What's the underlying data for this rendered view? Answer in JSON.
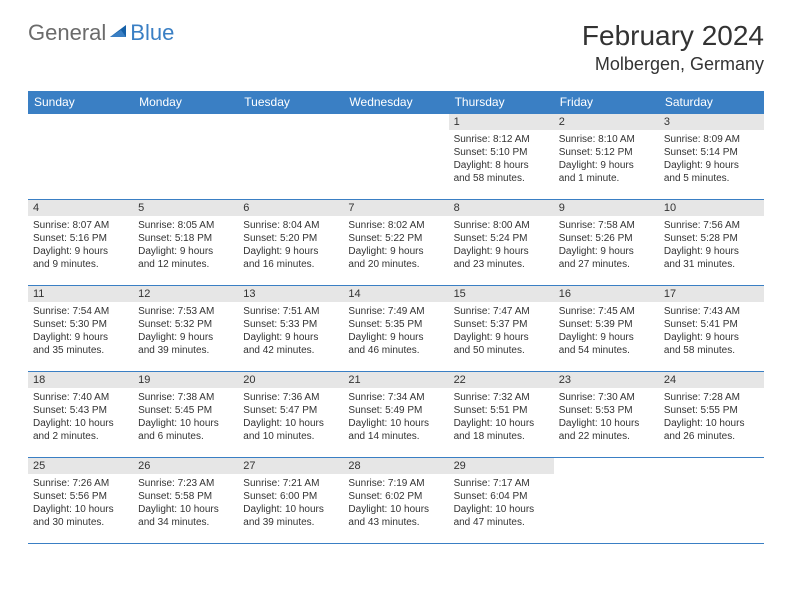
{
  "logo": {
    "text1": "General",
    "text2": "Blue"
  },
  "title": "February 2024",
  "location": "Molbergen, Germany",
  "dayHeaders": [
    "Sunday",
    "Monday",
    "Tuesday",
    "Wednesday",
    "Thursday",
    "Friday",
    "Saturday"
  ],
  "colors": {
    "accent": "#3a7fc4",
    "headerText": "#ffffff",
    "dayBg": "#e6e6e6",
    "text": "#333333",
    "logoGray": "#6b6b6b"
  },
  "weeks": [
    [
      null,
      null,
      null,
      null,
      {
        "n": "1",
        "sr": "Sunrise: 8:12 AM",
        "ss": "Sunset: 5:10 PM",
        "d1": "Daylight: 8 hours",
        "d2": "and 58 minutes."
      },
      {
        "n": "2",
        "sr": "Sunrise: 8:10 AM",
        "ss": "Sunset: 5:12 PM",
        "d1": "Daylight: 9 hours",
        "d2": "and 1 minute."
      },
      {
        "n": "3",
        "sr": "Sunrise: 8:09 AM",
        "ss": "Sunset: 5:14 PM",
        "d1": "Daylight: 9 hours",
        "d2": "and 5 minutes."
      }
    ],
    [
      {
        "n": "4",
        "sr": "Sunrise: 8:07 AM",
        "ss": "Sunset: 5:16 PM",
        "d1": "Daylight: 9 hours",
        "d2": "and 9 minutes."
      },
      {
        "n": "5",
        "sr": "Sunrise: 8:05 AM",
        "ss": "Sunset: 5:18 PM",
        "d1": "Daylight: 9 hours",
        "d2": "and 12 minutes."
      },
      {
        "n": "6",
        "sr": "Sunrise: 8:04 AM",
        "ss": "Sunset: 5:20 PM",
        "d1": "Daylight: 9 hours",
        "d2": "and 16 minutes."
      },
      {
        "n": "7",
        "sr": "Sunrise: 8:02 AM",
        "ss": "Sunset: 5:22 PM",
        "d1": "Daylight: 9 hours",
        "d2": "and 20 minutes."
      },
      {
        "n": "8",
        "sr": "Sunrise: 8:00 AM",
        "ss": "Sunset: 5:24 PM",
        "d1": "Daylight: 9 hours",
        "d2": "and 23 minutes."
      },
      {
        "n": "9",
        "sr": "Sunrise: 7:58 AM",
        "ss": "Sunset: 5:26 PM",
        "d1": "Daylight: 9 hours",
        "d2": "and 27 minutes."
      },
      {
        "n": "10",
        "sr": "Sunrise: 7:56 AM",
        "ss": "Sunset: 5:28 PM",
        "d1": "Daylight: 9 hours",
        "d2": "and 31 minutes."
      }
    ],
    [
      {
        "n": "11",
        "sr": "Sunrise: 7:54 AM",
        "ss": "Sunset: 5:30 PM",
        "d1": "Daylight: 9 hours",
        "d2": "and 35 minutes."
      },
      {
        "n": "12",
        "sr": "Sunrise: 7:53 AM",
        "ss": "Sunset: 5:32 PM",
        "d1": "Daylight: 9 hours",
        "d2": "and 39 minutes."
      },
      {
        "n": "13",
        "sr": "Sunrise: 7:51 AM",
        "ss": "Sunset: 5:33 PM",
        "d1": "Daylight: 9 hours",
        "d2": "and 42 minutes."
      },
      {
        "n": "14",
        "sr": "Sunrise: 7:49 AM",
        "ss": "Sunset: 5:35 PM",
        "d1": "Daylight: 9 hours",
        "d2": "and 46 minutes."
      },
      {
        "n": "15",
        "sr": "Sunrise: 7:47 AM",
        "ss": "Sunset: 5:37 PM",
        "d1": "Daylight: 9 hours",
        "d2": "and 50 minutes."
      },
      {
        "n": "16",
        "sr": "Sunrise: 7:45 AM",
        "ss": "Sunset: 5:39 PM",
        "d1": "Daylight: 9 hours",
        "d2": "and 54 minutes."
      },
      {
        "n": "17",
        "sr": "Sunrise: 7:43 AM",
        "ss": "Sunset: 5:41 PM",
        "d1": "Daylight: 9 hours",
        "d2": "and 58 minutes."
      }
    ],
    [
      {
        "n": "18",
        "sr": "Sunrise: 7:40 AM",
        "ss": "Sunset: 5:43 PM",
        "d1": "Daylight: 10 hours",
        "d2": "and 2 minutes."
      },
      {
        "n": "19",
        "sr": "Sunrise: 7:38 AM",
        "ss": "Sunset: 5:45 PM",
        "d1": "Daylight: 10 hours",
        "d2": "and 6 minutes."
      },
      {
        "n": "20",
        "sr": "Sunrise: 7:36 AM",
        "ss": "Sunset: 5:47 PM",
        "d1": "Daylight: 10 hours",
        "d2": "and 10 minutes."
      },
      {
        "n": "21",
        "sr": "Sunrise: 7:34 AM",
        "ss": "Sunset: 5:49 PM",
        "d1": "Daylight: 10 hours",
        "d2": "and 14 minutes."
      },
      {
        "n": "22",
        "sr": "Sunrise: 7:32 AM",
        "ss": "Sunset: 5:51 PM",
        "d1": "Daylight: 10 hours",
        "d2": "and 18 minutes."
      },
      {
        "n": "23",
        "sr": "Sunrise: 7:30 AM",
        "ss": "Sunset: 5:53 PM",
        "d1": "Daylight: 10 hours",
        "d2": "and 22 minutes."
      },
      {
        "n": "24",
        "sr": "Sunrise: 7:28 AM",
        "ss": "Sunset: 5:55 PM",
        "d1": "Daylight: 10 hours",
        "d2": "and 26 minutes."
      }
    ],
    [
      {
        "n": "25",
        "sr": "Sunrise: 7:26 AM",
        "ss": "Sunset: 5:56 PM",
        "d1": "Daylight: 10 hours",
        "d2": "and 30 minutes."
      },
      {
        "n": "26",
        "sr": "Sunrise: 7:23 AM",
        "ss": "Sunset: 5:58 PM",
        "d1": "Daylight: 10 hours",
        "d2": "and 34 minutes."
      },
      {
        "n": "27",
        "sr": "Sunrise: 7:21 AM",
        "ss": "Sunset: 6:00 PM",
        "d1": "Daylight: 10 hours",
        "d2": "and 39 minutes."
      },
      {
        "n": "28",
        "sr": "Sunrise: 7:19 AM",
        "ss": "Sunset: 6:02 PM",
        "d1": "Daylight: 10 hours",
        "d2": "and 43 minutes."
      },
      {
        "n": "29",
        "sr": "Sunrise: 7:17 AM",
        "ss": "Sunset: 6:04 PM",
        "d1": "Daylight: 10 hours",
        "d2": "and 47 minutes."
      },
      null,
      null
    ]
  ]
}
